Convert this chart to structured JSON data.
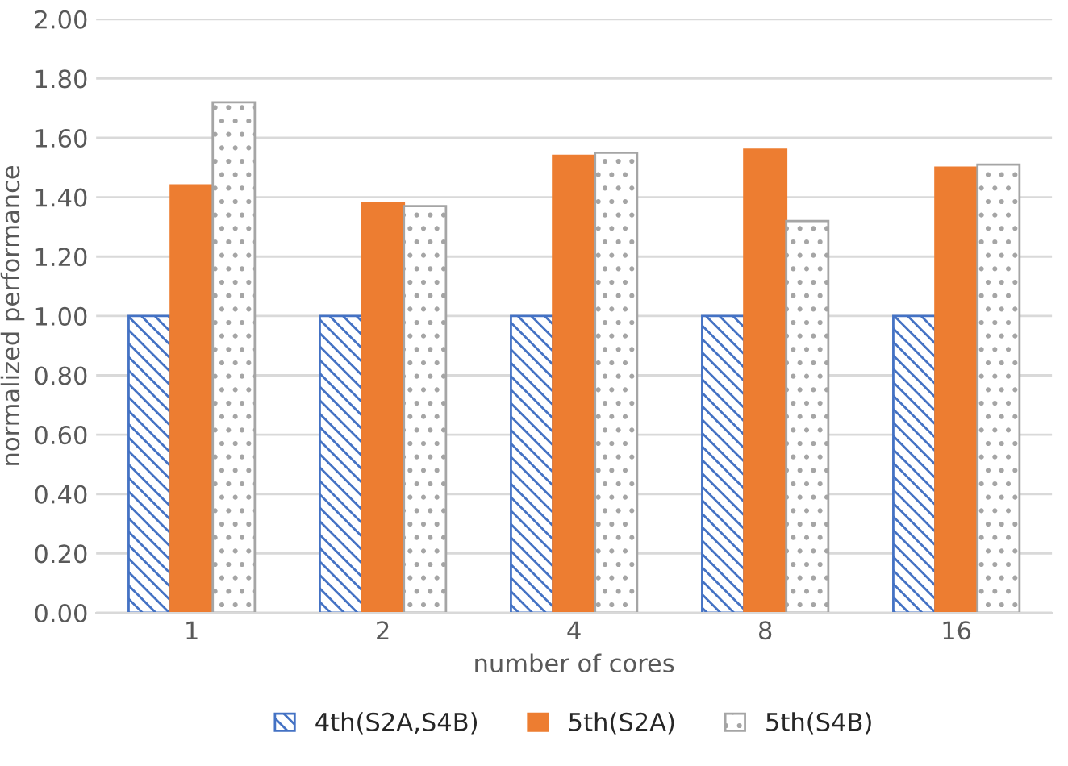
{
  "chart_data": {
    "type": "bar",
    "xlabel": "number of cores",
    "ylabel": "normalized performance",
    "categories": [
      "1",
      "2",
      "4",
      "8",
      "16"
    ],
    "series": [
      {
        "name": "4th(S2A,S4B)",
        "color": "#4472c4",
        "values": [
          1.0,
          1.0,
          1.0,
          1.0,
          1.0
        ]
      },
      {
        "name": "5th(S2A)",
        "color": "#ed7d31",
        "values": [
          1.44,
          1.38,
          1.54,
          1.56,
          1.5
        ]
      },
      {
        "name": "5th(S4B)",
        "color": "#a5a5a5",
        "values": [
          1.72,
          1.37,
          1.55,
          1.32,
          1.51
        ]
      }
    ],
    "ylim": [
      0,
      2.0
    ],
    "yticks": [
      {
        "value": 0,
        "label": "0.00"
      },
      {
        "value": 0.2,
        "label": "0.20"
      },
      {
        "value": 0.4,
        "label": "0.40"
      },
      {
        "value": 0.6,
        "label": "0.60"
      },
      {
        "value": 0.8,
        "label": "0.80"
      },
      {
        "value": 1.0,
        "label": "1.00"
      },
      {
        "value": 1.2,
        "label": "1.20"
      },
      {
        "value": 1.4,
        "label": "1.40"
      },
      {
        "value": 1.6,
        "label": "1.60"
      },
      {
        "value": 1.8,
        "label": "1.80"
      },
      {
        "value": 2.0,
        "label": "2.00"
      }
    ],
    "grid": "y",
    "legend": "bottom"
  }
}
